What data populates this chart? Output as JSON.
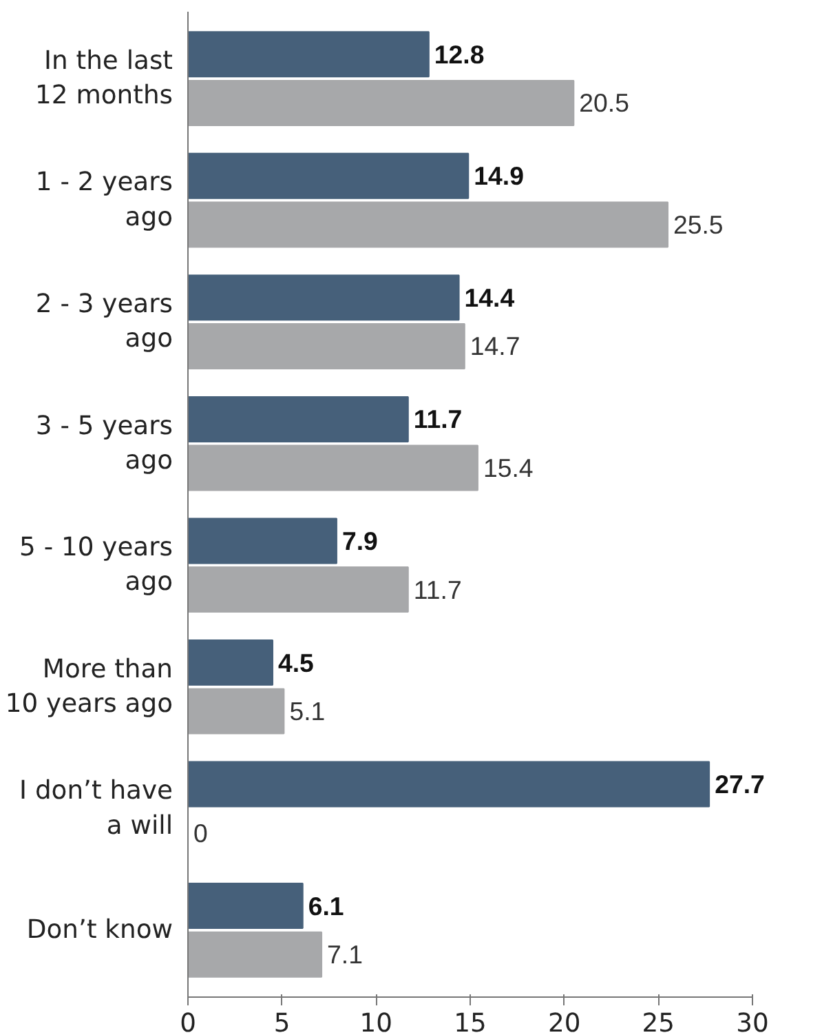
{
  "chart_data": {
    "type": "bar",
    "orientation": "horizontal",
    "categories": [
      "In the last\n12 months",
      "1 - 2 years\nago",
      "2 - 3 years\nago",
      "3 - 5 years\nago",
      "5 - 10 years\nago",
      "More than\n10 years ago",
      "I don’t have\na will",
      "Don’t know"
    ],
    "series": [
      {
        "color": "#46607a",
        "values": [
          12.8,
          14.9,
          14.4,
          11.7,
          7.9,
          4.5,
          27.7,
          6.1
        ]
      },
      {
        "color": "#a7a8aa",
        "values": [
          20.5,
          25.5,
          14.7,
          15.4,
          11.7,
          5.1,
          0,
          7.1
        ]
      }
    ],
    "xlim": [
      0,
      30
    ],
    "xticks": [
      0,
      5,
      10,
      15,
      20,
      25,
      30
    ],
    "grid": false,
    "data_labels": true
  }
}
